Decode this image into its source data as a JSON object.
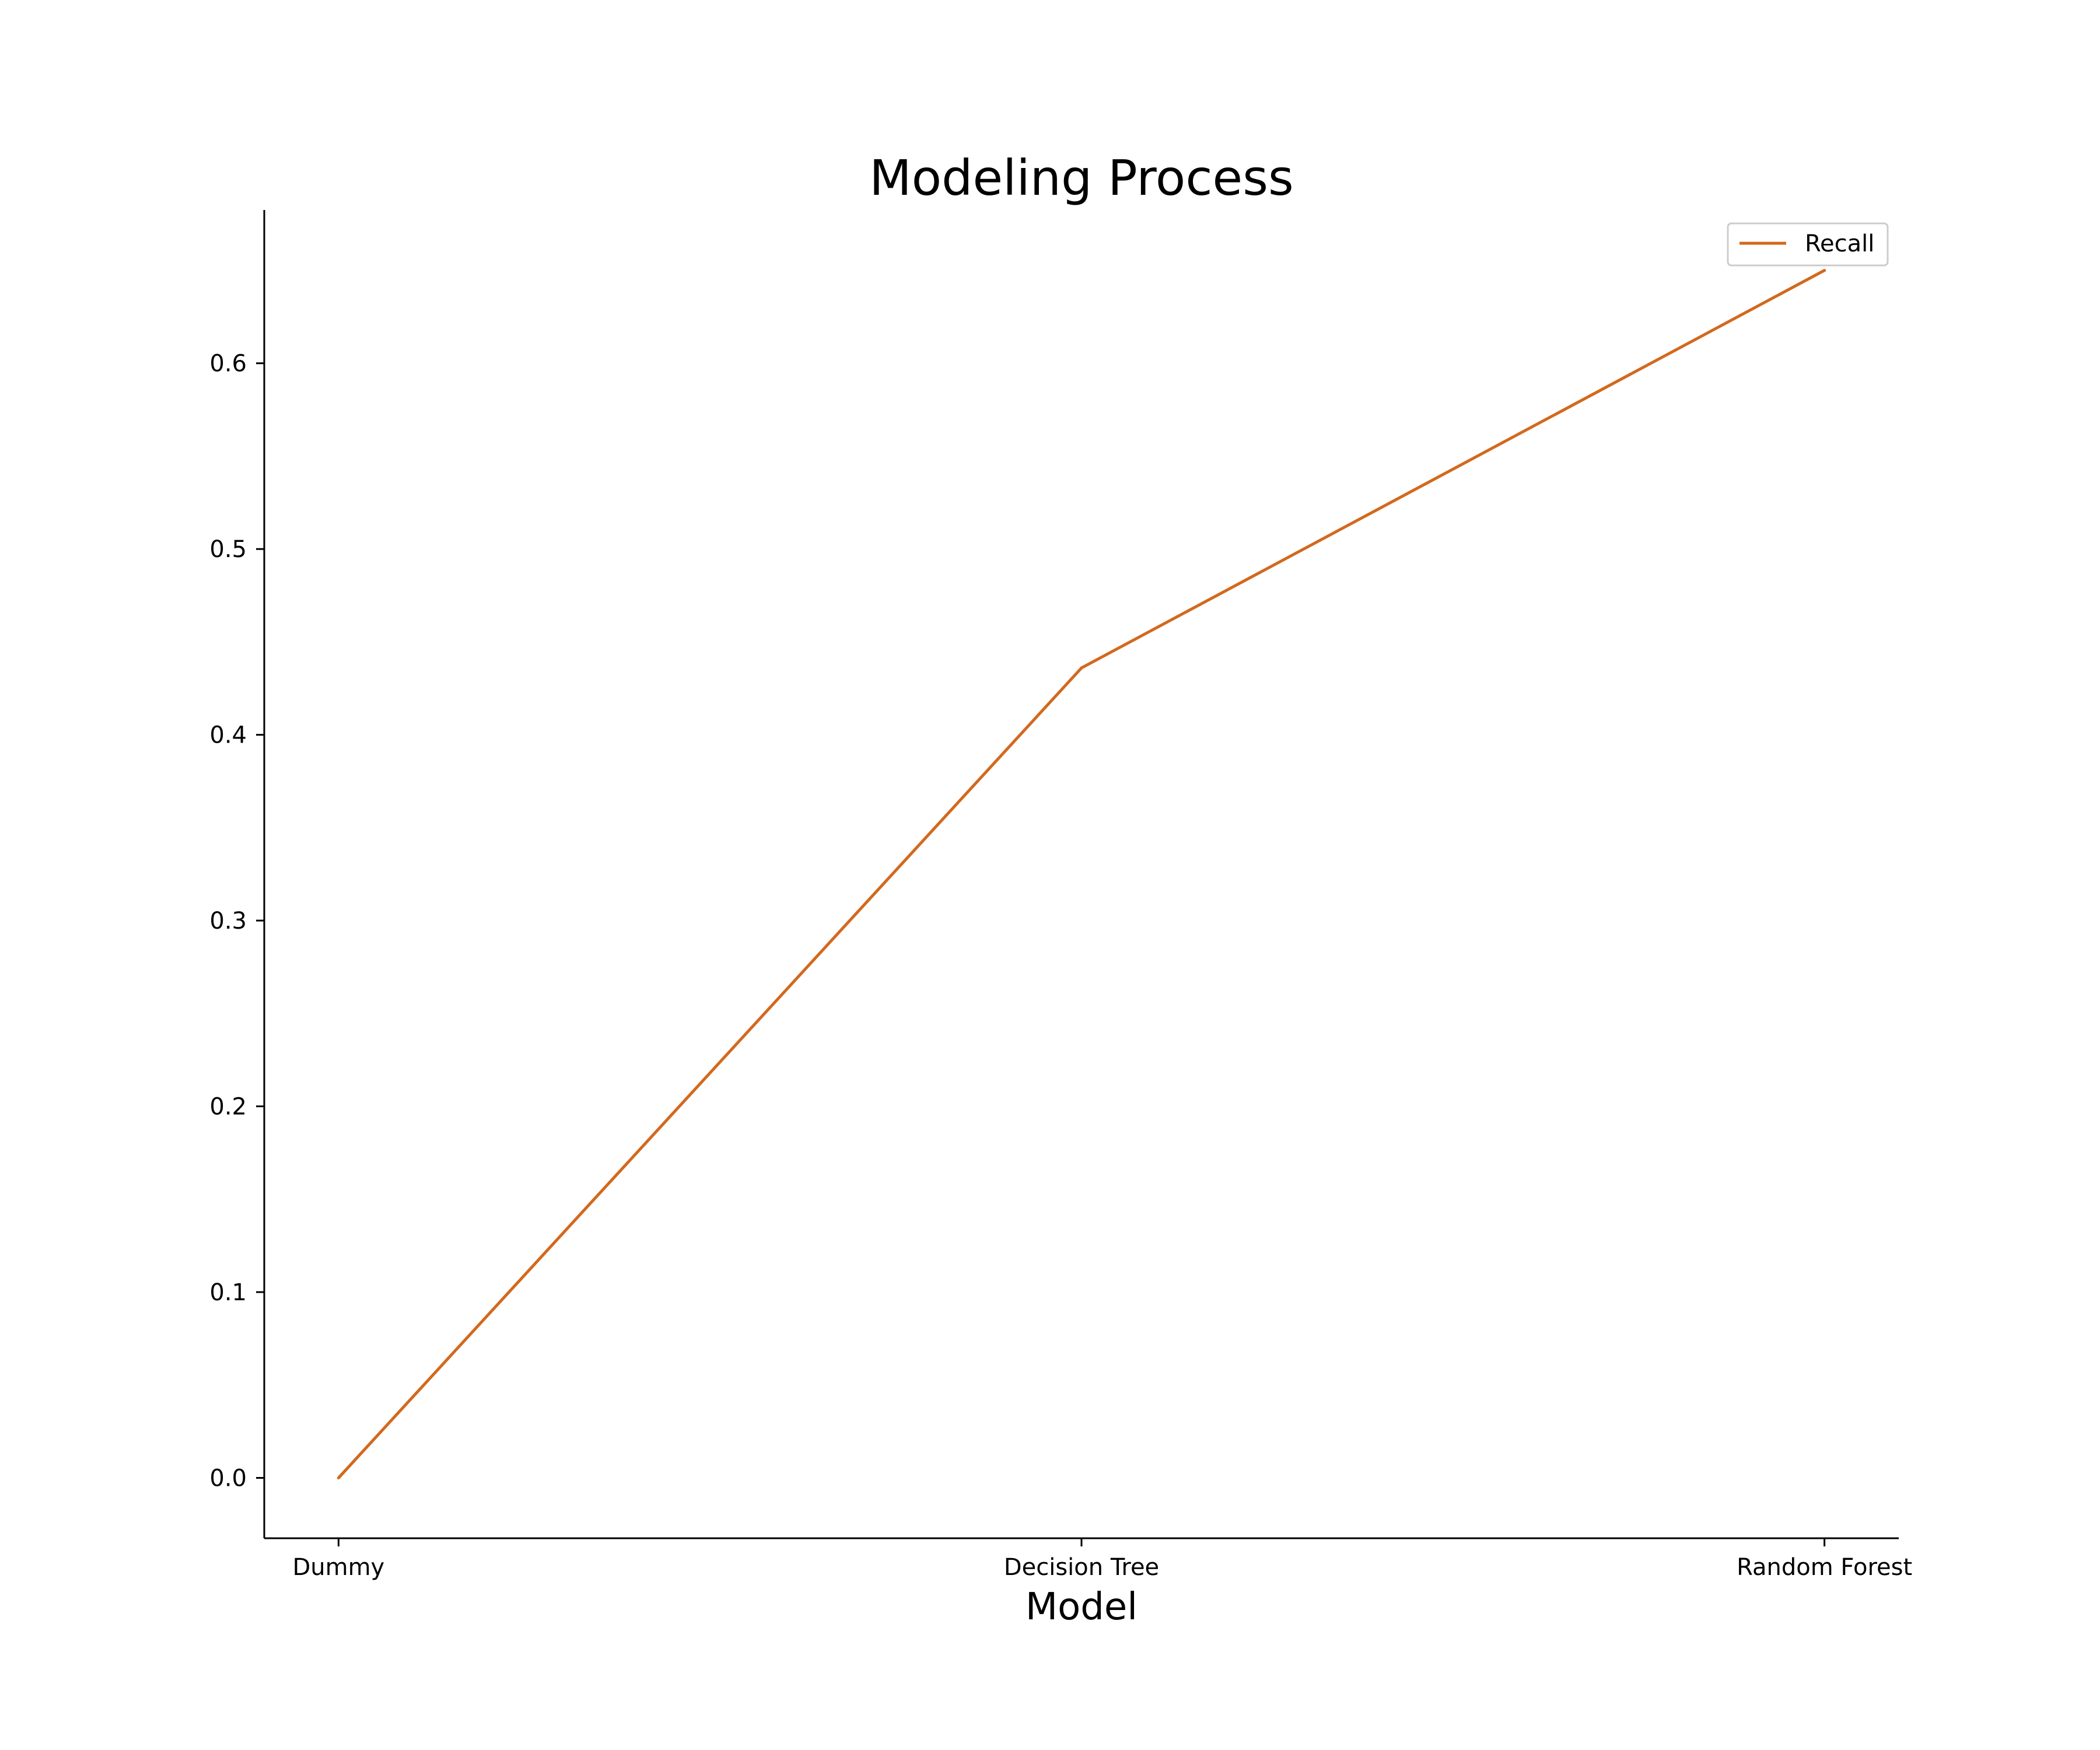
{
  "chart_data": {
    "type": "line",
    "title": "Modeling Process",
    "xlabel": "Model",
    "ylabel": "",
    "categories": [
      "Dummy",
      "Decision Tree",
      "Random Forest"
    ],
    "series": [
      {
        "name": "Recall",
        "color": "#d2691e",
        "values": [
          0.0,
          0.436,
          0.65
        ]
      }
    ],
    "ylim": [
      -0.0325,
      0.6825
    ],
    "yticks": [
      0.0,
      0.1,
      0.2,
      0.3,
      0.4,
      0.5,
      0.6
    ],
    "ytick_labels": [
      "0.0",
      "0.1",
      "0.2",
      "0.3",
      "0.4",
      "0.5",
      "0.6"
    ],
    "grid": false,
    "legend_position": "top-right"
  }
}
